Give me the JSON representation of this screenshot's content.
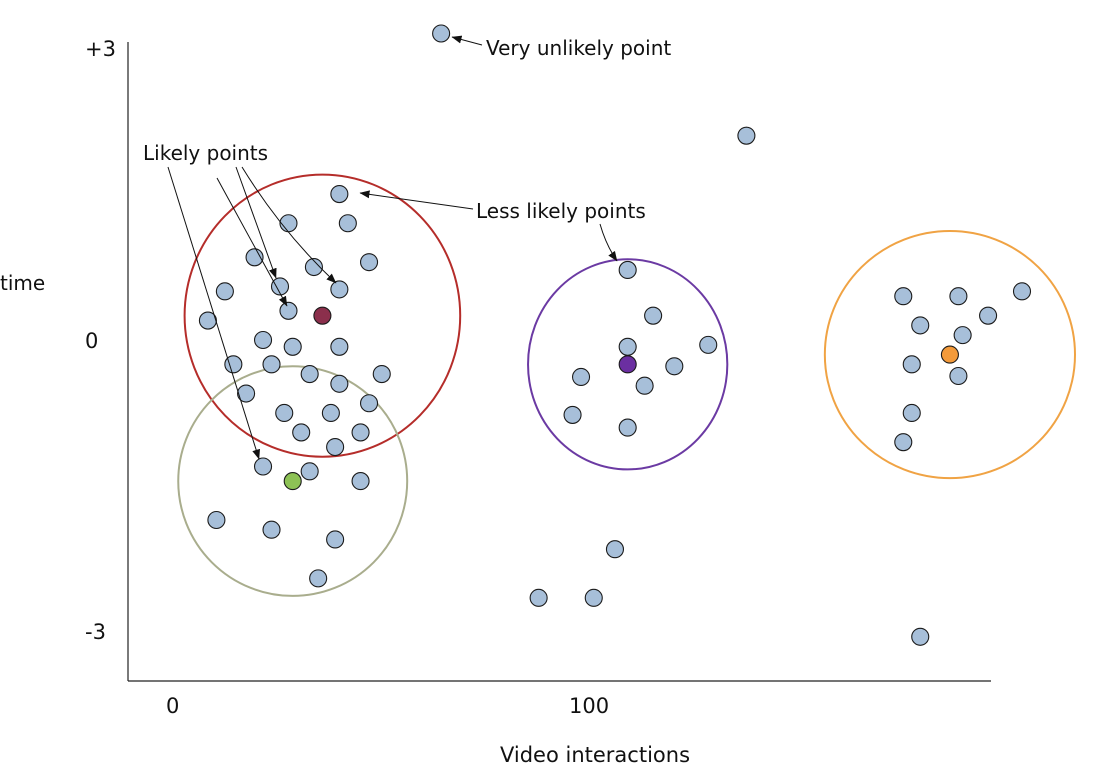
{
  "chart_data": {
    "type": "scatter",
    "xlabel": "Video interactions",
    "ylabel": "time",
    "xlim": [
      -10,
      193
    ],
    "ylim": [
      -3.5,
      3.1
    ],
    "x_ticks": [
      {
        "v": 0,
        "label": "0"
      },
      {
        "v": 100,
        "label": "100"
      }
    ],
    "y_ticks": [
      {
        "v": 3,
        "label": "+3"
      },
      {
        "v": 0,
        "label": "0"
      },
      {
        "v": -3,
        "label": "-3"
      }
    ],
    "points": [
      {
        "x": 63,
        "y": 3.15
      },
      {
        "x": 135,
        "y": 2.1
      },
      {
        "x": 39,
        "y": 1.5
      },
      {
        "x": 27,
        "y": 1.2
      },
      {
        "x": 41,
        "y": 1.2
      },
      {
        "x": 19,
        "y": 0.85
      },
      {
        "x": 33,
        "y": 0.75
      },
      {
        "x": 46,
        "y": 0.8
      },
      {
        "x": 12,
        "y": 0.5
      },
      {
        "x": 25,
        "y": 0.55
      },
      {
        "x": 39,
        "y": 0.52
      },
      {
        "x": 27,
        "y": 0.3
      },
      {
        "x": 8,
        "y": 0.2
      },
      {
        "x": 21,
        "y": 0.0
      },
      {
        "x": 28,
        "y": -0.07
      },
      {
        "x": 39,
        "y": -0.07
      },
      {
        "x": 14,
        "y": -0.25
      },
      {
        "x": 23,
        "y": -0.25
      },
      {
        "x": 32,
        "y": -0.35
      },
      {
        "x": 49,
        "y": -0.35
      },
      {
        "x": 39,
        "y": -0.45
      },
      {
        "x": 17,
        "y": -0.55
      },
      {
        "x": 46,
        "y": -0.65
      },
      {
        "x": 26,
        "y": -0.75
      },
      {
        "x": 37,
        "y": -0.75
      },
      {
        "x": 30,
        "y": -0.95
      },
      {
        "x": 44,
        "y": -0.95
      },
      {
        "x": 38,
        "y": -1.1
      },
      {
        "x": 21,
        "y": -1.3
      },
      {
        "x": 32,
        "y": -1.35
      },
      {
        "x": 44,
        "y": -1.45
      },
      {
        "x": 10,
        "y": -1.85
      },
      {
        "x": 23,
        "y": -1.95
      },
      {
        "x": 38,
        "y": -2.05
      },
      {
        "x": 34,
        "y": -2.45
      },
      {
        "x": 107,
        "y": 0.72
      },
      {
        "x": 113,
        "y": 0.25
      },
      {
        "x": 126,
        "y": -0.05
      },
      {
        "x": 107,
        "y": -0.07
      },
      {
        "x": 96,
        "y": -0.38
      },
      {
        "x": 111,
        "y": -0.47
      },
      {
        "x": 118,
        "y": -0.27
      },
      {
        "x": 94,
        "y": -0.77
      },
      {
        "x": 107,
        "y": -0.9
      },
      {
        "x": 104,
        "y": -2.15
      },
      {
        "x": 86,
        "y": -2.65
      },
      {
        "x": 99,
        "y": -2.65
      },
      {
        "x": 172,
        "y": 0.45
      },
      {
        "x": 185,
        "y": 0.45
      },
      {
        "x": 200,
        "y": 0.5
      },
      {
        "x": 192,
        "y": 0.25
      },
      {
        "x": 176,
        "y": 0.15
      },
      {
        "x": 186,
        "y": 0.05
      },
      {
        "x": 174,
        "y": -0.25
      },
      {
        "x": 185,
        "y": -0.37
      },
      {
        "x": 174,
        "y": -0.75
      },
      {
        "x": 172,
        "y": -1.05
      },
      {
        "x": 176,
        "y": -3.05
      }
    ],
    "clusters": [
      {
        "center": {
          "x": 35,
          "y": 0.25
        },
        "radius_x": 32.5,
        "radius_y": 1.45,
        "ring_color": "#b52d2a",
        "center_color": "#8b2f4c"
      },
      {
        "center": {
          "x": 28,
          "y": -1.45
        },
        "radius_x": 27,
        "radius_y": 1.18,
        "ring_color": "#a9ad8d",
        "center_color": "#8dc255"
      },
      {
        "center": {
          "x": 107,
          "y": -0.25
        },
        "radius_x": 23.5,
        "radius_y": 1.08,
        "ring_color": "#6b3aa3",
        "center_color": "#6b2fa1"
      },
      {
        "center": {
          "x": 183,
          "y": -0.15
        },
        "radius_x": 29.5,
        "radius_y": 1.27,
        "ring_color": "#f0a344",
        "center_color": "#f39a3a"
      }
    ],
    "annotations": [
      {
        "text": "Very unlikely point"
      },
      {
        "text": "Likely points"
      },
      {
        "text": "Less likely points"
      }
    ]
  }
}
